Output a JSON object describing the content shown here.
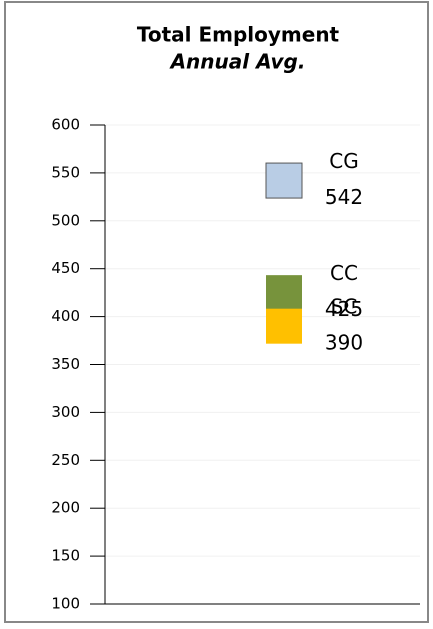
{
  "chart_data": {
    "type": "marker",
    "title": "Total Employment",
    "subtitle": "Annual Avg.",
    "categories": [
      null
    ],
    "series": [
      {
        "name": "CG",
        "color": "#b9cde5",
        "values": [
          542
        ]
      },
      {
        "name": "CC",
        "color": "#77933c",
        "values": [
          425
        ]
      },
      {
        "name": "SC",
        "color": "#ffc000",
        "values": [
          390
        ]
      }
    ],
    "ylim": [
      100,
      600
    ],
    "yticks": [
      100,
      150,
      200,
      250,
      300,
      350,
      400,
      450,
      500,
      550,
      600
    ],
    "grid": true
  }
}
